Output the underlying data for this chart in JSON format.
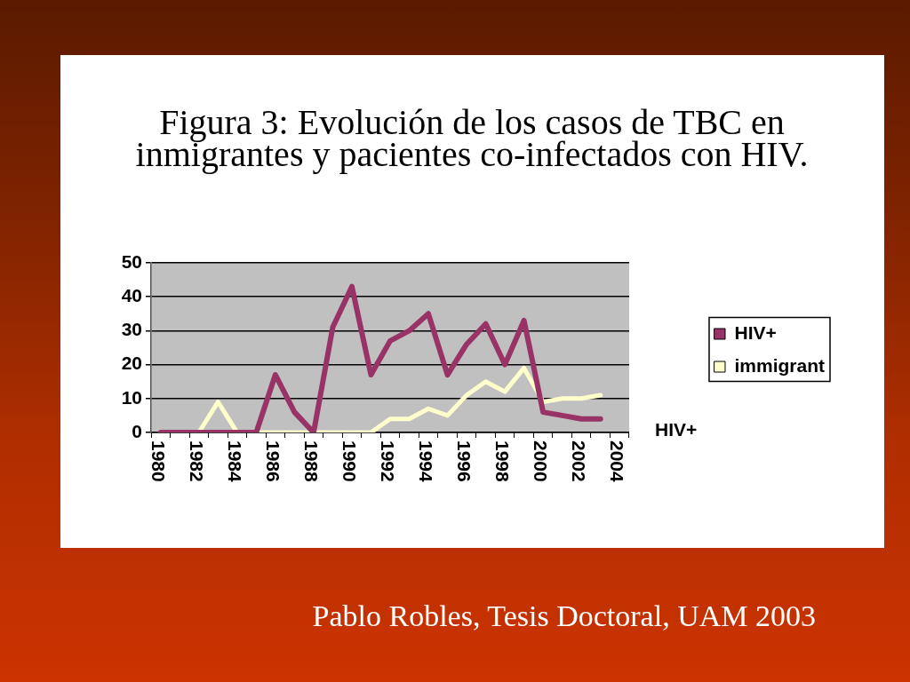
{
  "chart_data": {
    "type": "line",
    "title": "Figura 3: Evolución de los casos de TBC en inmigrantes y pacientes co-infectados con HIV.",
    "categories": [
      "1980",
      null,
      "1982",
      null,
      "1984",
      null,
      "1986",
      null,
      "1988",
      null,
      "1990",
      null,
      "1992",
      null,
      "1994",
      null,
      "1996",
      null,
      "1998",
      null,
      "2000",
      null,
      "2002",
      null,
      "2004"
    ],
    "series": [
      {
        "name": "HIV+",
        "color": "#993366",
        "values": [
          0,
          0,
          0,
          0,
          0,
          0,
          17,
          6,
          0,
          31,
          43,
          17,
          27,
          30,
          35,
          17,
          26,
          32,
          20,
          33,
          6,
          5,
          4,
          4,
          null
        ]
      },
      {
        "name": "immigrant",
        "color": "#ffffcc",
        "values": [
          0,
          0,
          0,
          9,
          0,
          0,
          0,
          0,
          0,
          0,
          0,
          0,
          4,
          4,
          7,
          5,
          11,
          15,
          12,
          19,
          9,
          10,
          10,
          11,
          null
        ]
      }
    ],
    "ylim": [
      0,
      50
    ],
    "yticks": [
      0,
      10,
      20,
      30,
      40,
      50
    ],
    "grid": "y",
    "legend": "right",
    "marker": "none",
    "line_style": "solid",
    "annotations": [
      "HIV+",
      "Pablo Robles, Tesis Doctoral, UAM 2003"
    ]
  }
}
